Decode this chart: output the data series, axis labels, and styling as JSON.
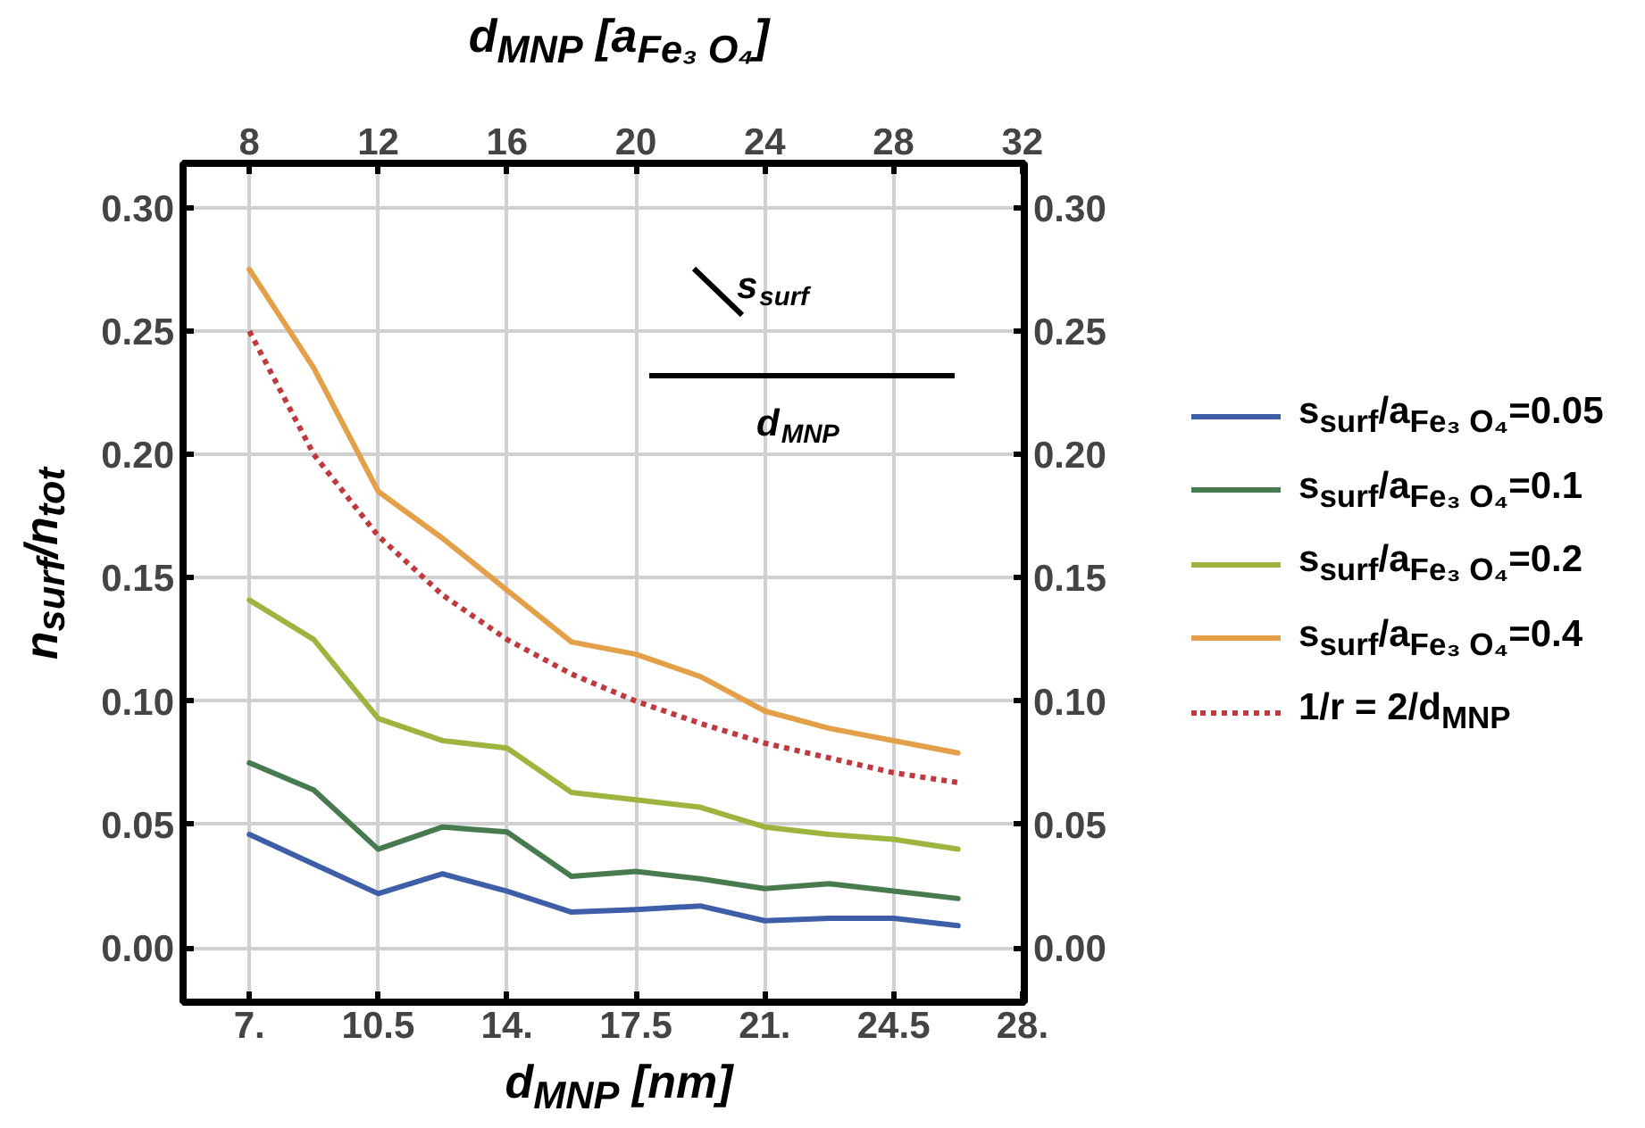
{
  "chart_data": {
    "type": "line",
    "xlabel": "d$_{MNP}$ [nm]",
    "x2label": "d$_{MNP}$ [a$_{Fe₃ O₄}$]",
    "ylabel": "n$_{surf}$/n$_{tot}$",
    "x": [
      7,
      8.75,
      10.5,
      12.25,
      14,
      15.75,
      17.5,
      19.25,
      21,
      22.75,
      24.5,
      26.25
    ],
    "xlim": [
      5.2,
      28.05
    ],
    "xticks": [
      {
        "value": 7,
        "label": "7."
      },
      10.5,
      {
        "value": 14,
        "label": "14."
      },
      17.5,
      {
        "value": 21,
        "label": "21."
      },
      24.5,
      {
        "value": 28,
        "label": "28."
      }
    ],
    "x2lim": [
      5.94,
      32.06
    ],
    "x2ticks": [
      8,
      12,
      16,
      20,
      24,
      28,
      32
    ],
    "ylim": [
      -0.022,
      0.318
    ],
    "yticks": [
      {
        "value": 0,
        "label": "0.00"
      },
      0.05,
      {
        "value": 0.1,
        "label": "0.10"
      },
      0.15,
      {
        "value": 0.2,
        "label": "0.20"
      },
      0.25,
      {
        "value": 0.3,
        "label": "0.30"
      }
    ],
    "y2lim": [
      -0.022,
      0.318
    ],
    "y2ticks": [
      {
        "value": 0,
        "label": "0.00"
      },
      0.05,
      {
        "value": 0.1,
        "label": "0.10"
      },
      0.15,
      {
        "value": 0.2,
        "label": "0.20"
      },
      0.25,
      {
        "value": 0.3,
        "label": "0.30"
      }
    ],
    "grid": true,
    "legend": "right",
    "line_style": "solid",
    "series": [
      {
        "name": "s$_{surf}$/a$_{Fe₃ O₄}$=0.05",
        "color": "#3f5ea8",
        "values": [
          0.046,
          0.034,
          0.022,
          0.03,
          0.023,
          0.0145,
          0.0155,
          0.017,
          0.011,
          0.012,
          0.012,
          0.009
        ]
      },
      {
        "name": "s$_{surf}$/a$_{Fe₃ O₄}$=0.1",
        "color": "#477a4f",
        "values": [
          0.075,
          0.064,
          0.04,
          0.049,
          0.047,
          0.029,
          0.031,
          0.028,
          0.024,
          0.026,
          0.023,
          0.02
        ]
      },
      {
        "name": "s$_{surf}$/a$_{Fe₃ O₄}$=0.2",
        "color": "#9db53f",
        "values": [
          0.141,
          0.125,
          0.093,
          0.084,
          0.081,
          0.063,
          0.06,
          0.057,
          0.049,
          0.046,
          0.044,
          0.04
        ]
      },
      {
        "name": "s$_{surf}$/a$_{Fe₃ O₄}$=0.4",
        "color": "#e3a048",
        "values": [
          0.275,
          0.235,
          0.185,
          0.166,
          0.145,
          0.124,
          0.119,
          0.11,
          0.096,
          0.089,
          0.084,
          0.079
        ]
      },
      {
        "name": "1/r = 2/d$_{MNP}$",
        "color": "#c0393f",
        "line_style": "dotted",
        "values": [
          0.25,
          0.2,
          0.167,
          0.143,
          0.125,
          0.111,
          0.1,
          0.091,
          0.083,
          0.077,
          0.071,
          0.067
        ]
      }
    ],
    "annotations": [
      "s$_{surf}$",
      "d$_{MNP}$"
    ]
  }
}
